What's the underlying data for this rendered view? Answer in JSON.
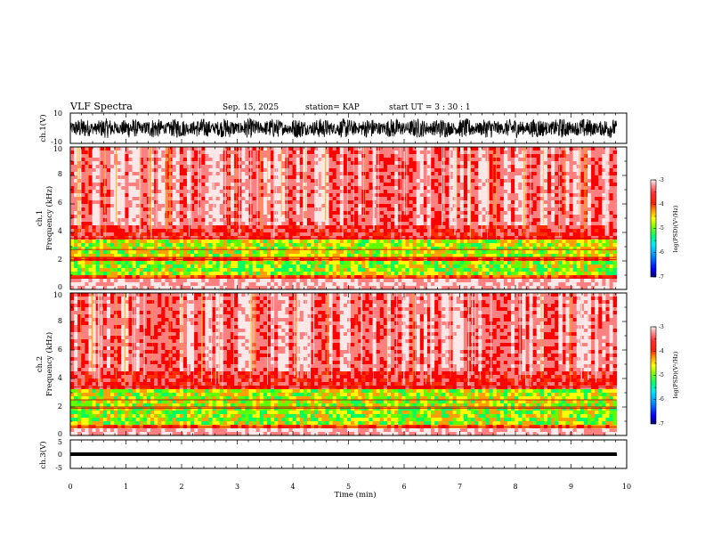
{
  "chart_data": {
    "type": "heatmap",
    "title": "VLF Spectra",
    "date": "Sep. 15, 2025",
    "station": "station= KAP",
    "start": "start  UT  =   3  : 30 : 1",
    "xlabel": "Time  (min)",
    "xlim": [
      0,
      10
    ],
    "xticks": [
      "0",
      "1",
      "2",
      "3",
      "4",
      "5",
      "6",
      "7",
      "8",
      "9",
      "10"
    ],
    "data_end_min": 9.82,
    "panels": [
      {
        "name": "ch1-waveform",
        "type": "line",
        "ylabel": "ch.1(V)",
        "ylim": [
          -10,
          10
        ],
        "yticks": [
          "10",
          "-10"
        ],
        "amplitude_V": 6.5
      },
      {
        "name": "ch1-spectrogram",
        "type": "heatmap",
        "ylabel_top": "ch.1",
        "ylabel": "Frequency  (kHz)",
        "ylim": [
          0,
          10
        ],
        "yticks": [
          "0",
          "2",
          "4",
          "6",
          "8",
          "10"
        ],
        "bands_kHz": {
          "base": [
            0,
            0.8
          ],
          "green_low": [
            1.0,
            2.0
          ],
          "green_high": [
            2.3,
            3.4
          ],
          "edge": [
            3.4,
            4.6
          ]
        },
        "lines_kHz": [
          2.1,
          2.25,
          2.8,
          3.6,
          0.8
        ],
        "colorbar": {
          "ticks": [
            "-3",
            "-4",
            "-5",
            "-6",
            "-7"
          ],
          "label": "log(PSD)(V²/Hz)"
        }
      },
      {
        "name": "ch2-spectrogram",
        "type": "heatmap",
        "ylabel_top": "ch.2",
        "ylabel": "Frequency  (kHz)",
        "ylim": [
          0,
          10
        ],
        "yticks": [
          "0",
          "2",
          "4",
          "6",
          "8",
          "10"
        ],
        "bands_kHz": {
          "base": [
            0,
            0.5
          ],
          "green_low": [
            0.7,
            1.9
          ],
          "green_high": [
            2.0,
            3.2
          ],
          "edge": [
            3.2,
            4.4
          ]
        },
        "lines_kHz": [
          1.9,
          2.0,
          2.5,
          3.4,
          0.6
        ],
        "colorbar": {
          "ticks": [
            "-3",
            "-4",
            "-5",
            "-6",
            "-7"
          ],
          "label": "log(PSD)(V²/Hz)"
        }
      },
      {
        "name": "ch3-waveform",
        "type": "line",
        "ylabel": "ch.3(V)",
        "ylim": [
          -5,
          5
        ],
        "yticks": [
          "5",
          "0",
          "-5"
        ],
        "amplitude_V": 0.6
      }
    ],
    "colormap": [
      "#000070",
      "#0000ff",
      "#0080ff",
      "#00e0ff",
      "#00ff60",
      "#60ff00",
      "#ffff00",
      "#ffa000",
      "#ff3000",
      "#ff0000",
      "#ff8080",
      "#ffe8e8"
    ]
  }
}
